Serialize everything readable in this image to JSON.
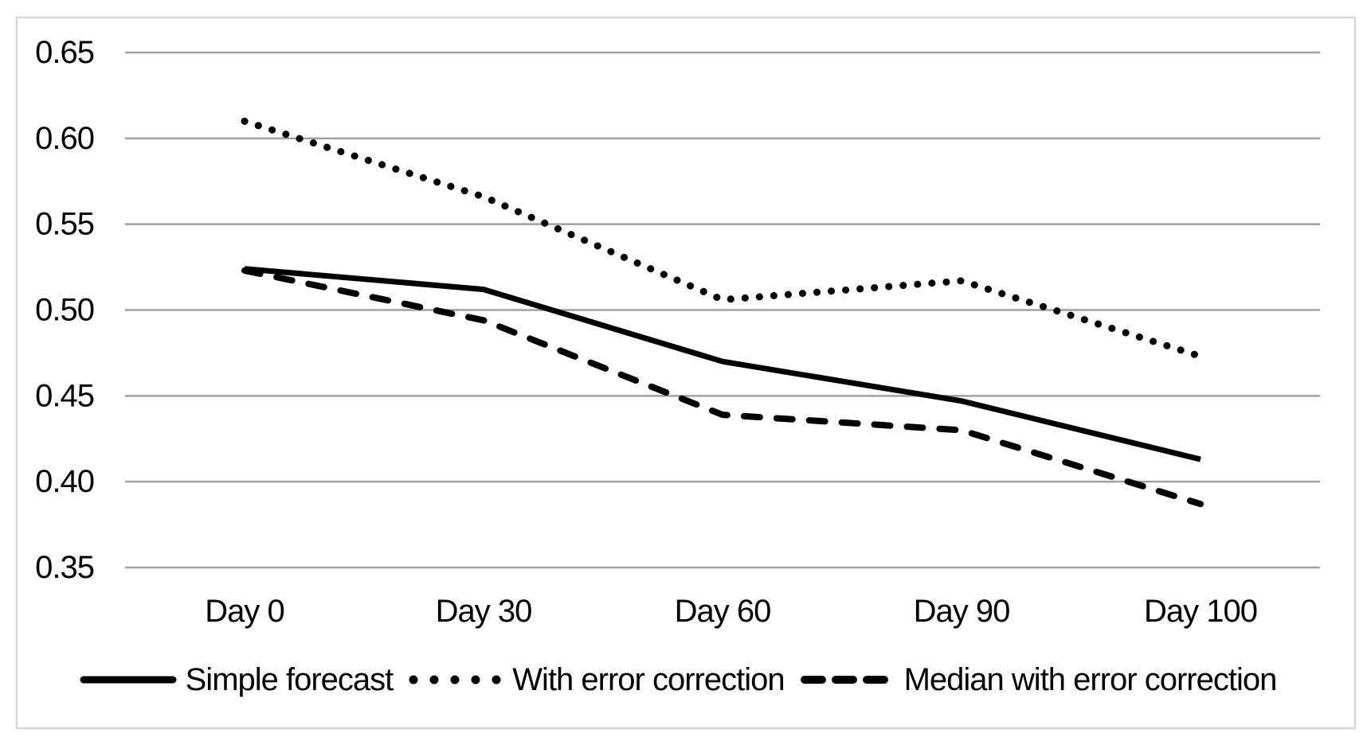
{
  "figure": {
    "background_color": "#ffffff",
    "border_color": "#d9d9d9",
    "gridline_color": "#a0a0a0",
    "series_color": "#000000",
    "text_color": "#000000"
  },
  "chart_data": {
    "type": "line",
    "title": "",
    "xlabel": "",
    "ylabel": "",
    "categories": [
      "Day 0",
      "Day 30",
      "Day 60",
      "Day 90",
      "Day 100"
    ],
    "series": [
      {
        "name": "Simple forecast",
        "style": "solid",
        "values": [
          0.524,
          0.512,
          0.47,
          0.447,
          0.413
        ]
      },
      {
        "name": "With error correction",
        "style": "dotted",
        "values": [
          0.61,
          0.566,
          0.506,
          0.517,
          0.473
        ]
      },
      {
        "name": "Median with error correction",
        "style": "dashed",
        "values": [
          0.523,
          0.494,
          0.439,
          0.43,
          0.387
        ]
      }
    ],
    "ylim": [
      0.35,
      0.65
    ],
    "ytick_labels": [
      "0.65",
      "0.60",
      "0.55",
      "0.50",
      "0.45",
      "0.40",
      "0.35"
    ],
    "ytick_values": [
      0.65,
      0.6,
      0.55,
      0.5,
      0.45,
      0.4,
      0.35
    ],
    "grid": "horizontal-only",
    "legend_position": "bottom-center"
  }
}
